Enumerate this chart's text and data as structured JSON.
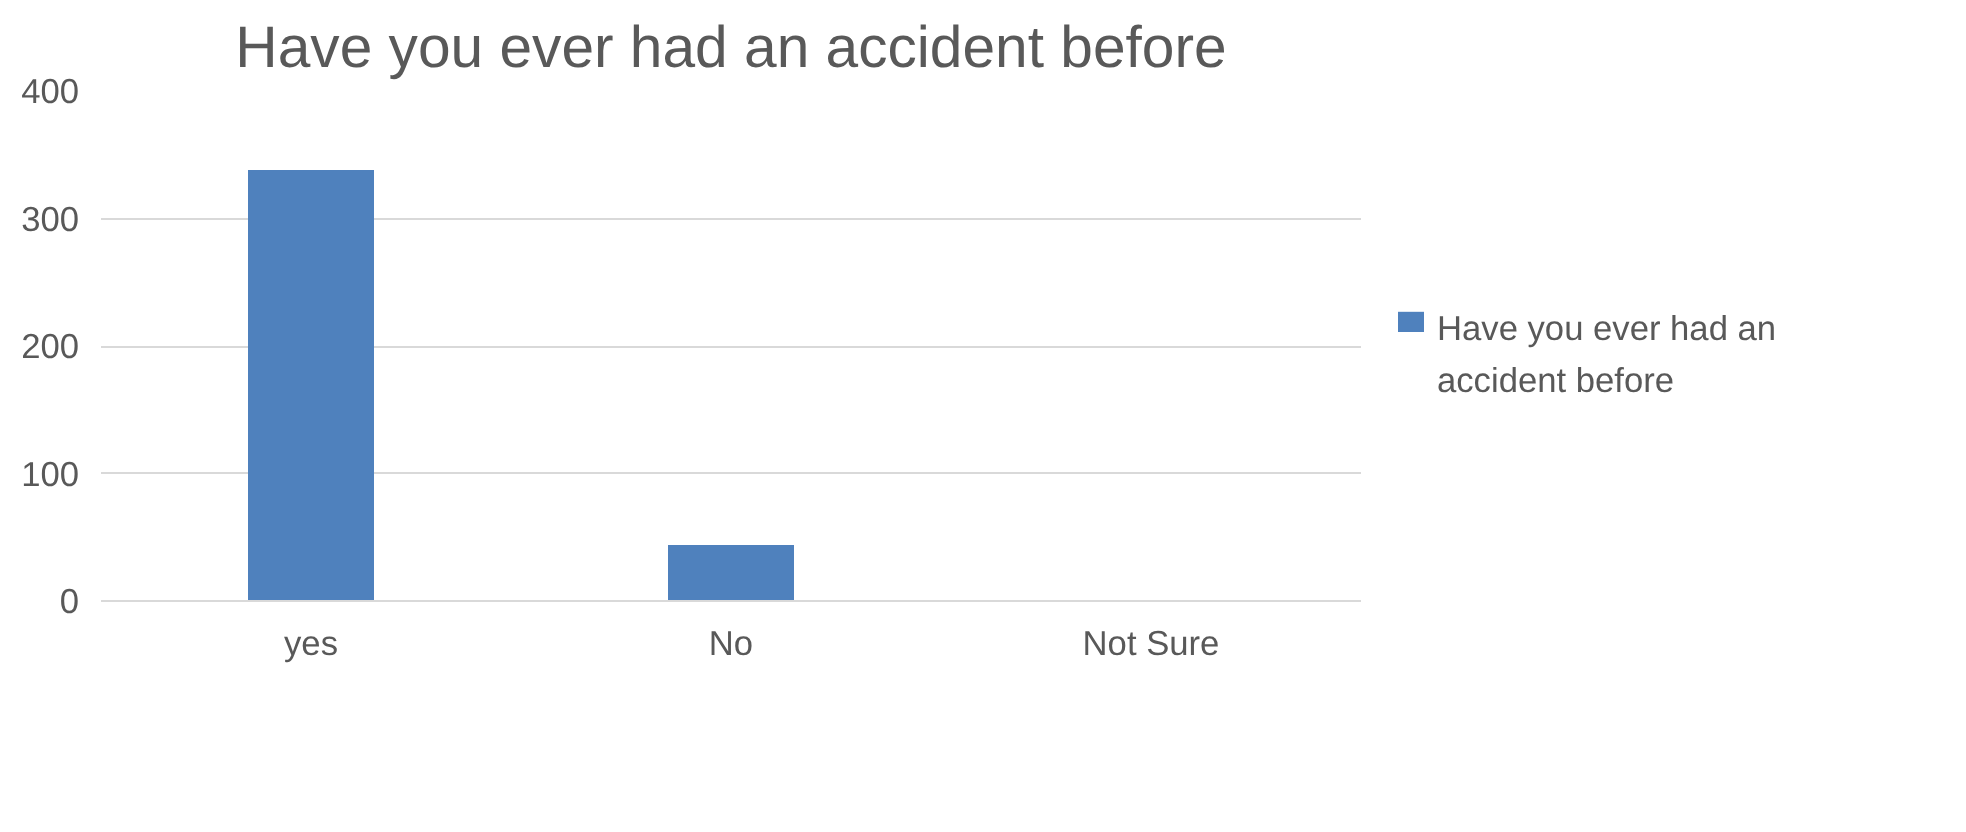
{
  "chart_data": {
    "type": "bar",
    "title": "Have you ever had an accident before",
    "categories": [
      "yes",
      "No",
      "Not Sure"
    ],
    "series": [
      {
        "name": "Have you ever had an accident before",
        "color": "#4f81bd",
        "values": [
          338,
          44,
          0
        ]
      }
    ],
    "ylim": [
      0,
      400
    ],
    "yticks": [
      0,
      100,
      200,
      300,
      400
    ],
    "grid": "y",
    "legend": "right"
  }
}
